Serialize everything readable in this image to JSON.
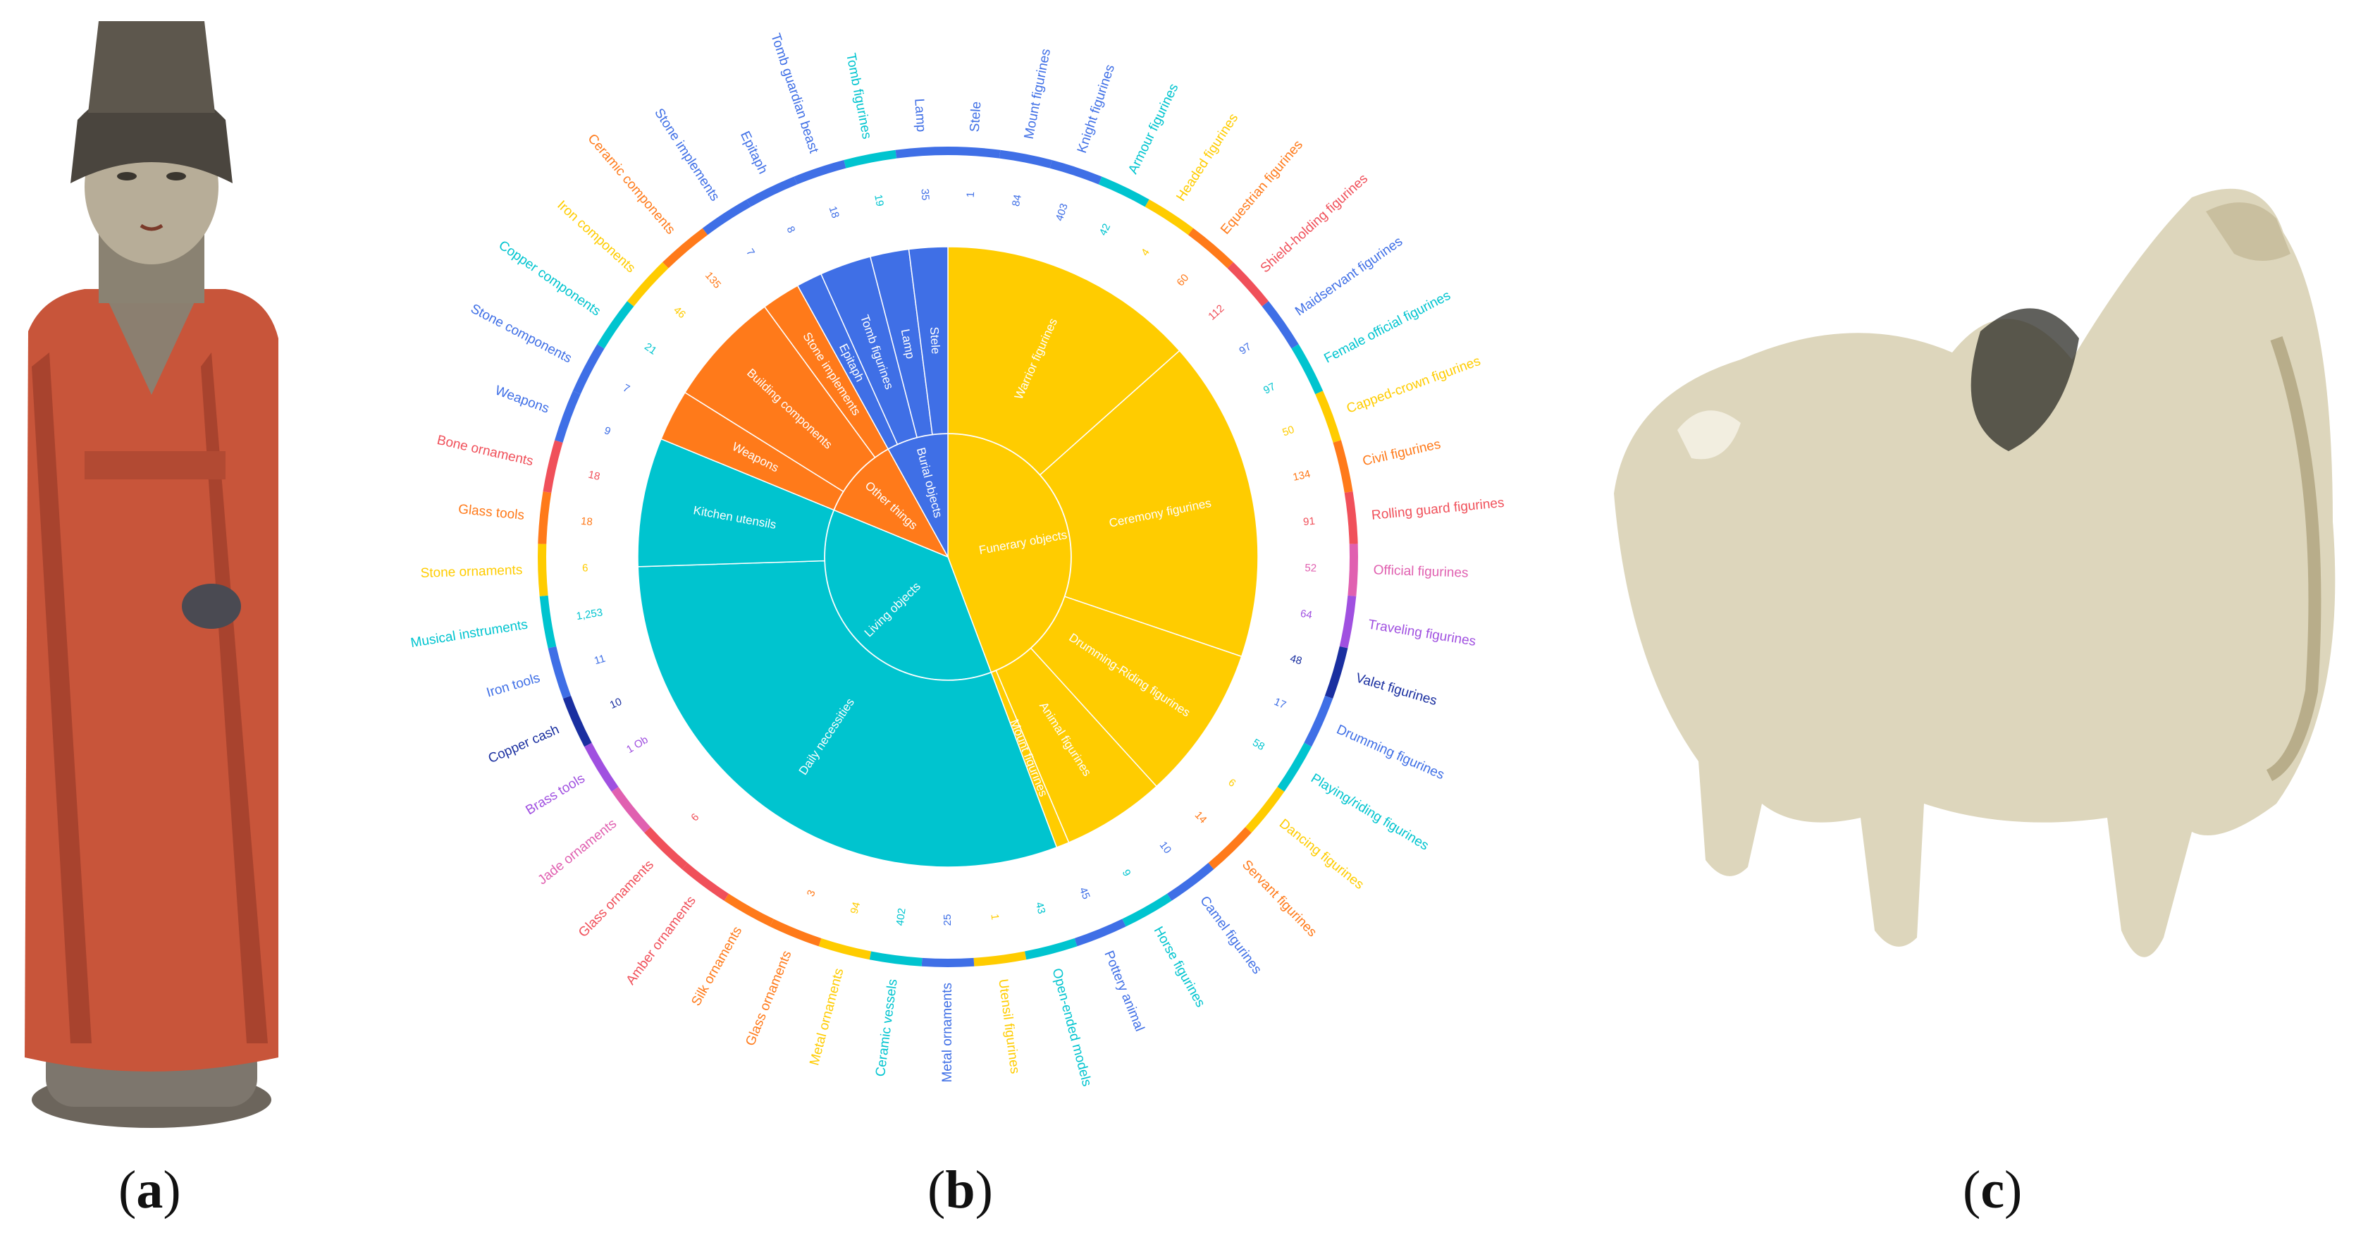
{
  "panel_labels": {
    "a": "a",
    "b": "b",
    "c": "c"
  },
  "colors": {
    "funerary": "#FFCC00",
    "living": "#00C4CF",
    "other": "#FF7A1A",
    "burial": "#3F6FE6",
    "ring_palette": [
      "#3F6FE6",
      "#FFCC00",
      "#FF7A1A",
      "#F0505A",
      "#00C4CF",
      "#A050E0",
      "#1A2FA0",
      "#E060B0"
    ]
  },
  "chart_data": {
    "type": "sunburst",
    "title": "",
    "categories": [
      {
        "name": "Funerary objects",
        "color": "#FFCC00",
        "children": [
          {
            "name": "Warrior figurines",
            "value": 20
          },
          {
            "name": "Ceremony figurines",
            "value": 25
          },
          {
            "name": "Drumming-Riding figurines",
            "value": 12
          },
          {
            "name": "Animal figurines",
            "value": 8
          },
          {
            "name": "Mount figurines",
            "value": 1
          }
        ]
      },
      {
        "name": "Living objects",
        "color": "#00C4CF",
        "children": [
          {
            "name": "Daily necessities",
            "value": 45
          },
          {
            "name": "Kitchen utensils",
            "value": 10
          }
        ]
      },
      {
        "name": "Other things",
        "color": "#FF7A1A",
        "children": [
          {
            "name": "Weapons",
            "value": 4
          },
          {
            "name": "Building components",
            "value": 9
          },
          {
            "name": "Stone implements",
            "value": 3
          }
        ]
      },
      {
        "name": "Burial objects",
        "color": "#3F6FE6",
        "children": [
          {
            "name": "Epitaph",
            "value": 2
          },
          {
            "name": "Tomb figurines",
            "value": 4
          },
          {
            "name": "Lamp",
            "value": 3
          },
          {
            "name": "Stele",
            "value": 3
          }
        ]
      }
    ],
    "outer_ring": [
      {
        "label": "Stele",
        "value": "1",
        "color": "#3F6FE6",
        "weight": 1
      },
      {
        "label": "Mount figurines",
        "value": "84",
        "color": "#3F6FE6",
        "weight": 1
      },
      {
        "label": "Knight figurines",
        "value": "403",
        "color": "#3F6FE6",
        "weight": 1
      },
      {
        "label": "Armour figurines",
        "value": "42",
        "color": "#00C4CF",
        "weight": 1
      },
      {
        "label": "Headed figurines",
        "value": "4",
        "color": "#FFCC00",
        "weight": 1
      },
      {
        "label": "Equestrian figurines",
        "value": "60",
        "color": "#FF7A1A",
        "weight": 1
      },
      {
        "label": "Shield-holding figurines",
        "value": "112",
        "color": "#F0505A",
        "weight": 1
      },
      {
        "label": "Maidservant figurines",
        "value": "97",
        "color": "#3F6FE6",
        "weight": 1
      },
      {
        "label": "Female official figurines",
        "value": "97",
        "color": "#00C4CF",
        "weight": 1
      },
      {
        "label": "Capped-crown figurines",
        "value": "50",
        "color": "#FFCC00",
        "weight": 1
      },
      {
        "label": "Civil figurines",
        "value": "134",
        "color": "#FF7A1A",
        "weight": 1
      },
      {
        "label": "Rolling guard figurines",
        "value": "91",
        "color": "#F0505A",
        "weight": 1
      },
      {
        "label": "Official figurines",
        "value": "52",
        "color": "#E060B0",
        "weight": 1
      },
      {
        "label": "Traveling figurines",
        "value": "64",
        "color": "#A050E0",
        "weight": 1
      },
      {
        "label": "Valet figurines",
        "value": "48",
        "color": "#1A2FA0",
        "weight": 1
      },
      {
        "label": "Drumming figurines",
        "value": "17",
        "color": "#3F6FE6",
        "weight": 1
      },
      {
        "label": "Playing/riding figurines",
        "value": "58",
        "color": "#00C4CF",
        "weight": 1
      },
      {
        "label": "Dancing figurines",
        "value": "6",
        "color": "#FFCC00",
        "weight": 1
      },
      {
        "label": "Servant figurines",
        "value": "14",
        "color": "#FF7A1A",
        "weight": 1
      },
      {
        "label": "Camel figurines",
        "value": "10",
        "color": "#3F6FE6",
        "weight": 1
      },
      {
        "label": "Horse figurines",
        "value": "9",
        "color": "#00C4CF",
        "weight": 1
      },
      {
        "label": "Pottery animal",
        "value": "45",
        "color": "#3F6FE6",
        "weight": 1
      },
      {
        "label": "Open-ended models",
        "value": "43",
        "color": "#00C4CF",
        "weight": 1
      },
      {
        "label": "Utensil figurines",
        "value": "1",
        "color": "#FFCC00",
        "weight": 1
      },
      {
        "label": "Metal ornaments",
        "value": "25",
        "color": "#3F6FE6",
        "weight": 1
      },
      {
        "label": "Ceramic vessels",
        "value": "402",
        "color": "#00C4CF",
        "weight": 1
      },
      {
        "label": "Metal ornaments",
        "value": "94",
        "color": "#FFCC00",
        "weight": 1
      },
      {
        "label": "Glass ornaments",
        "value": "3",
        "color": "#FF7A1A",
        "weight": 1
      },
      {
        "label": "Silk ornaments",
        "value": "",
        "color": "#FF7A1A",
        "weight": 1
      },
      {
        "label": "Amber ornaments",
        "value": "",
        "color": "#F0505A",
        "weight": 1
      },
      {
        "label": "Glass ornaments",
        "value": "6",
        "color": "#F0505A",
        "weight": 1
      },
      {
        "label": "Jade ornaments",
        "value": "",
        "color": "#E060B0",
        "weight": 1
      },
      {
        "label": "Brass tools",
        "value": "1 Ob",
        "color": "#A050E0",
        "weight": 1
      },
      {
        "label": "Copper cash",
        "value": "10",
        "color": "#1A2FA0",
        "weight": 1
      },
      {
        "label": "Iron tools",
        "value": "11",
        "color": "#3F6FE6",
        "weight": 1
      },
      {
        "label": "Musical instruments",
        "value": "1,253",
        "color": "#00C4CF",
        "weight": 1
      },
      {
        "label": "Stone ornaments",
        "value": "6",
        "color": "#FFCC00",
        "weight": 1
      },
      {
        "label": "Glass tools",
        "value": "18",
        "color": "#FF7A1A",
        "weight": 1
      },
      {
        "label": "Bone ornaments",
        "value": "18",
        "color": "#F0505A",
        "weight": 1
      },
      {
        "label": "Weapons",
        "value": "9",
        "color": "#3F6FE6",
        "weight": 1
      },
      {
        "label": "Stone components",
        "value": "7",
        "color": "#3F6FE6",
        "weight": 1
      },
      {
        "label": "Copper components",
        "value": "21",
        "color": "#00C4CF",
        "weight": 1
      },
      {
        "label": "Iron components",
        "value": "46",
        "color": "#FFCC00",
        "weight": 1
      },
      {
        "label": "Ceramic components",
        "value": "135",
        "color": "#FF7A1A",
        "weight": 1
      },
      {
        "label": "Stone implements",
        "value": "7",
        "color": "#3F6FE6",
        "weight": 1
      },
      {
        "label": "Epitaph",
        "value": "8",
        "color": "#3F6FE6",
        "weight": 1
      },
      {
        "label": "Tomb guardian beast",
        "value": "18",
        "color": "#3F6FE6",
        "weight": 1
      },
      {
        "label": "Tomb figurines",
        "value": "19",
        "color": "#00C4CF",
        "weight": 1
      },
      {
        "label": "Lamp",
        "value": "35",
        "color": "#3F6FE6",
        "weight": 1
      }
    ]
  }
}
